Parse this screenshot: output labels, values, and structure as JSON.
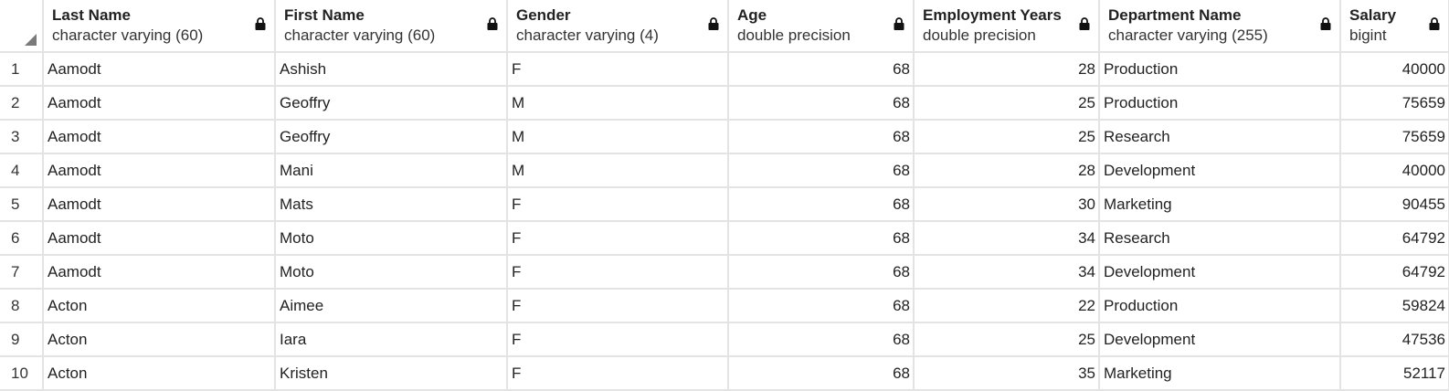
{
  "columns": [
    {
      "name": "Last Name",
      "type": "character varying (60)"
    },
    {
      "name": "First Name",
      "type": "character varying (60)"
    },
    {
      "name": "Gender",
      "type": "character varying (4)"
    },
    {
      "name": "Age",
      "type": "double precision"
    },
    {
      "name": "Employment Years",
      "type": "double precision"
    },
    {
      "name": "Department Name",
      "type": "character varying (255)"
    },
    {
      "name": "Salary",
      "type": "bigint"
    }
  ],
  "rows": [
    {
      "n": "1",
      "last": "Aamodt",
      "first": "Ashish",
      "gender": "F",
      "age": "68",
      "years": "28",
      "dept": "Production",
      "salary": "40000"
    },
    {
      "n": "2",
      "last": "Aamodt",
      "first": "Geoffry",
      "gender": "M",
      "age": "68",
      "years": "25",
      "dept": "Production",
      "salary": "75659"
    },
    {
      "n": "3",
      "last": "Aamodt",
      "first": "Geoffry",
      "gender": "M",
      "age": "68",
      "years": "25",
      "dept": "Research",
      "salary": "75659"
    },
    {
      "n": "4",
      "last": "Aamodt",
      "first": "Mani",
      "gender": "M",
      "age": "68",
      "years": "28",
      "dept": "Development",
      "salary": "40000"
    },
    {
      "n": "5",
      "last": "Aamodt",
      "first": "Mats",
      "gender": "F",
      "age": "68",
      "years": "30",
      "dept": "Marketing",
      "salary": "90455"
    },
    {
      "n": "6",
      "last": "Aamodt",
      "first": "Moto",
      "gender": "F",
      "age": "68",
      "years": "34",
      "dept": "Research",
      "salary": "64792"
    },
    {
      "n": "7",
      "last": "Aamodt",
      "first": "Moto",
      "gender": "F",
      "age": "68",
      "years": "34",
      "dept": "Development",
      "salary": "64792"
    },
    {
      "n": "8",
      "last": "Acton",
      "first": "Aimee",
      "gender": "F",
      "age": "68",
      "years": "22",
      "dept": "Production",
      "salary": "59824"
    },
    {
      "n": "9",
      "last": "Acton",
      "first": "Iara",
      "gender": "F",
      "age": "68",
      "years": "25",
      "dept": "Development",
      "salary": "47536"
    },
    {
      "n": "10",
      "last": "Acton",
      "first": "Kristen",
      "gender": "F",
      "age": "68",
      "years": "35",
      "dept": "Marketing",
      "salary": "52117"
    }
  ],
  "icons": {
    "column_lock": "lock-icon",
    "corner": "select-all-corner-icon"
  },
  "colors": {
    "grid_line": "#e3e3e3",
    "text": "#222222"
  }
}
